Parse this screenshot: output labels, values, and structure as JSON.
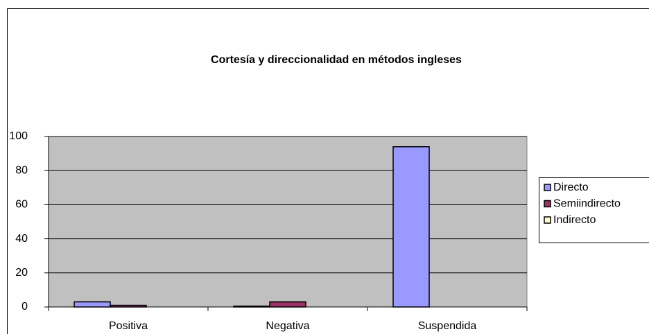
{
  "chart_data": {
    "type": "bar",
    "title": "Cortesía y direccionalidad en métodos ingleses",
    "categories": [
      "Positiva",
      "Negativa",
      "Suspendida"
    ],
    "series": [
      {
        "name": "Directo",
        "color": "#9999ff",
        "values": [
          3,
          0.5,
          94
        ]
      },
      {
        "name": "Semiindirecto",
        "color": "#993366",
        "values": [
          1,
          3,
          0
        ]
      },
      {
        "name": "Indirecto",
        "color": "#ffffcc",
        "values": [
          0,
          0,
          0
        ]
      }
    ],
    "ylim": [
      0,
      100
    ],
    "yticks": [
      0,
      20,
      40,
      60,
      80,
      100
    ],
    "grid": true,
    "legend": "right"
  }
}
